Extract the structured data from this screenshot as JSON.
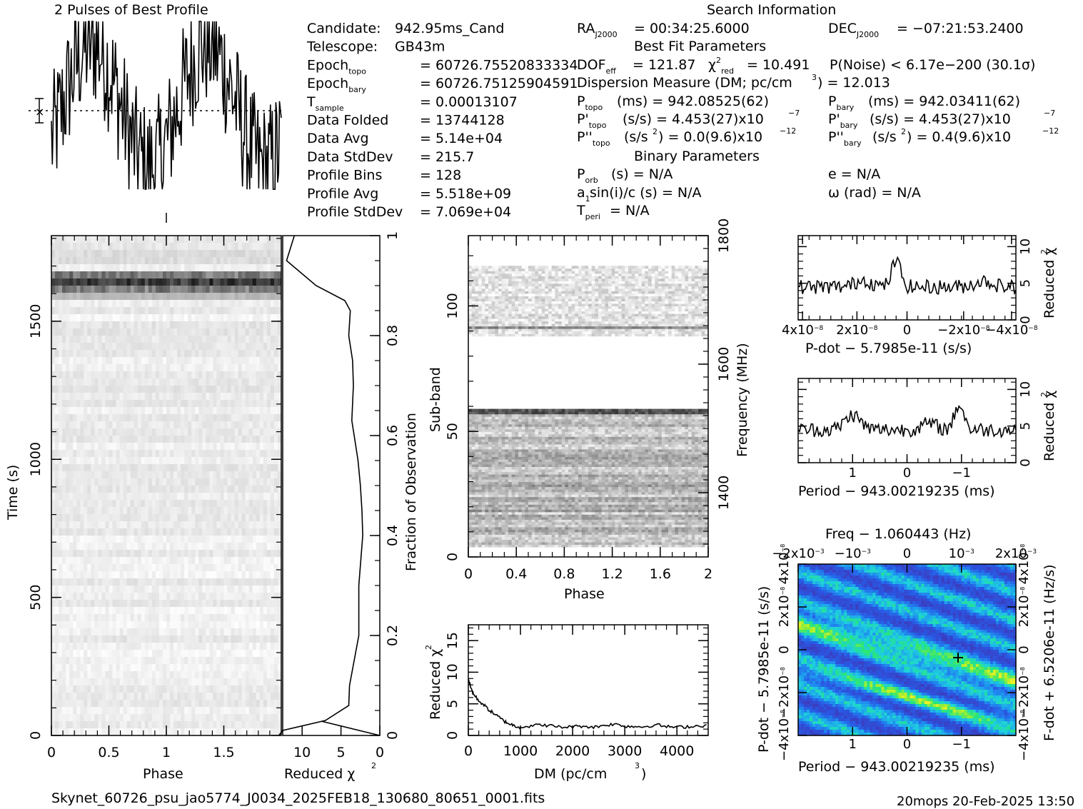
{
  "header": {
    "profile_title": "2 Pulses of Best Profile",
    "search_title": "Search Information",
    "best_fit_title": "Best Fit Parameters",
    "binary_title": "Binary Parameters",
    "footer_file": "Skynet_60726_psu_jao5774_J0034_2025FEB18_130680_80651_0001.fits",
    "footer_stamp": "20mops 20-Feb-2025 13:50"
  },
  "info_left": [
    {
      "label": "Candidate:",
      "value": "942.95ms_Cand"
    },
    {
      "label": "Telescope:",
      "value": "GB43m"
    },
    {
      "label": "Epoch",
      "sub": "topo",
      "value": "= 60726.75520833334"
    },
    {
      "label": "Epoch",
      "sub": "bary",
      "value": "= 60726.75125904591"
    },
    {
      "label": "T",
      "sub": "sample",
      "value": "=   0.00013107"
    },
    {
      "label": "Data Folded",
      "value": "=   13744128"
    },
    {
      "label": "Data Avg",
      "value": "=   5.14e+04"
    },
    {
      "label": "Data StdDev",
      "value": "=   215.7"
    },
    {
      "label": "Profile Bins",
      "value": "=   128"
    },
    {
      "label": "Profile Avg",
      "value": "=   5.518e+09"
    },
    {
      "label": "Profile StdDev",
      "value": "=   7.069e+04"
    }
  ],
  "search_info": {
    "ra": "= 00:34:25.6000",
    "dec": "= −07:21:53.2400",
    "dof": "= 121.87",
    "chi2": "= 10.491",
    "pnoise": "P(Noise) < 6.17e−200   (30.1σ)",
    "dm": "Dispersion Measure (DM; pc/cm",
    "dm_value": ") = 12.013",
    "p_topo": "(ms) =   942.08525(62)",
    "p_bary": "(ms) =   942.03411(62)",
    "pd_topo": "(s/s) =   4.453(27)x10",
    "pd_bary": "(s/s) =   4.453(27)x10",
    "pd_exp": "−7",
    "pdd_topo": "(s/s",
    "pdd_topo_val": ") = 0.0(9.6)x10",
    "pdd_bary_val": ") =   0.4(9.6)x10",
    "pdd_exp": "−12",
    "porb": "P",
    "porb_text": "(s) = N/A",
    "a1": "a",
    "a1_text": "sin(i)/c (s) = N/A",
    "tperi_text": "= N/A",
    "e_text": "e = N/A",
    "omega_text": "ω (rad) = N/A"
  },
  "chart_data": [
    {
      "type": "line",
      "name": "profile",
      "title": "2 Pulses of Best Profile",
      "x_range": [
        0,
        2
      ],
      "bins": 256
    },
    {
      "type": "heatmap",
      "name": "time-phase",
      "xlabel": "Phase",
      "ylabel": "Time (s)",
      "x_ticks": [
        "0",
        "0.5",
        "1",
        "1.5"
      ],
      "y_ticks": [
        "0",
        "500",
        "1000",
        "1500"
      ],
      "xlim": [
        0,
        2
      ],
      "ylim": [
        0,
        1810
      ]
    },
    {
      "type": "line",
      "name": "chi2-vs-time",
      "xlabel": "Reduced χ",
      "x_ticks": [
        "10",
        "5",
        "0"
      ],
      "right_label": "Fraction of Observation",
      "right_ticks": [
        "0",
        "0.2",
        "0.4",
        "0.6",
        "0.8",
        "1"
      ],
      "x": [
        13,
        12.5,
        7,
        4,
        3.9,
        3.3,
        2.7,
        2.7,
        2.2,
        2.3,
        2.5,
        2.8,
        3.3,
        3.6,
        3.4,
        3.5,
        4.0,
        3.8,
        4.5,
        8.2,
        12,
        11
      ],
      "y": [
        0.0,
        0.01,
        0.03,
        0.06,
        0.1,
        0.15,
        0.2,
        0.3,
        0.4,
        0.45,
        0.5,
        0.55,
        0.6,
        0.63,
        0.7,
        0.75,
        0.8,
        0.85,
        0.87,
        0.9,
        0.95,
        1.0
      ]
    },
    {
      "type": "heatmap",
      "name": "subband-phase",
      "xlabel": "Phase",
      "ylabel": "Sub-band",
      "right_label": "Frequency (MHz)",
      "x_ticks": [
        "0",
        "0.4",
        "0.8",
        "1.2",
        "1.6",
        "2"
      ],
      "y_ticks": [
        "0",
        "50",
        "100"
      ],
      "right_ticks": [
        "1400",
        "1600",
        "1800"
      ]
    },
    {
      "type": "line",
      "name": "dm-curve",
      "xlabel": "DM (pc/cm",
      "ylabel": "Reduced χ",
      "x_ticks": [
        "0",
        "1000",
        "2000",
        "3000",
        "4000"
      ],
      "y_ticks": [
        "0",
        "5",
        "10",
        "15"
      ],
      "xlim": [
        0,
        4600
      ],
      "ylim": [
        0,
        17.5
      ],
      "x": [
        0,
        50,
        100,
        200,
        300,
        400,
        500,
        600,
        700,
        800,
        900,
        1000,
        1200,
        1400,
        1600,
        1800,
        2000,
        2200,
        2400,
        2600,
        2800,
        3000,
        3200,
        3400,
        3600,
        3800,
        4000,
        4200,
        4400,
        4600
      ],
      "y": [
        9.0,
        7.5,
        6.5,
        5.5,
        4.8,
        4.0,
        3.4,
        2.8,
        2.2,
        1.8,
        1.5,
        1.3,
        1.5,
        1.7,
        1.5,
        1.3,
        1.4,
        1.5,
        1.3,
        1.6,
        1.8,
        1.5,
        1.4,
        1.4,
        1.7,
        1.4,
        1.3,
        1.4,
        1.5,
        1.6
      ]
    },
    {
      "type": "line",
      "name": "pdot-curve",
      "xlabel": "P-dot − 5.7985e-11 (s/s)",
      "ylabel": "Reduced χ",
      "x_ticks": [
        "4x10",
        "2x10",
        "0",
        "−2x10",
        "−4x10"
      ],
      "tick_exp": "−8",
      "y_ticks": [
        "0",
        "5",
        "10"
      ]
    },
    {
      "type": "line",
      "name": "period-curve",
      "xlabel": "Period − 943.00219235 (ms)",
      "ylabel": "Reduced χ",
      "x_ticks": [
        "1",
        "0",
        "−1"
      ],
      "y_ticks": [
        "0",
        "5",
        "10"
      ]
    },
    {
      "type": "heatmap",
      "name": "p-pdot-plane",
      "top_label": "Freq − 1.060443 (Hz)",
      "xlabel": "Period − 943.00219235 (ms)",
      "ylabel": "P-dot − 5.7985e-11 (s/s)",
      "right_label": "F-dot + 6.5206e-11 (Hz/s)",
      "top_ticks": [
        "−2x10",
        "−10",
        "0",
        "10",
        "2x10"
      ],
      "top_exp": "−3",
      "x_ticks": [
        "1",
        "0",
        "−1"
      ],
      "y_ticks": [
        "4x10",
        "2x10",
        "0",
        "−2x10",
        "−4x10"
      ],
      "right_ticks": [
        "−4x10",
        "−2x10",
        "0",
        "2x10",
        "4x10"
      ],
      "tick_exp": "−8"
    }
  ]
}
